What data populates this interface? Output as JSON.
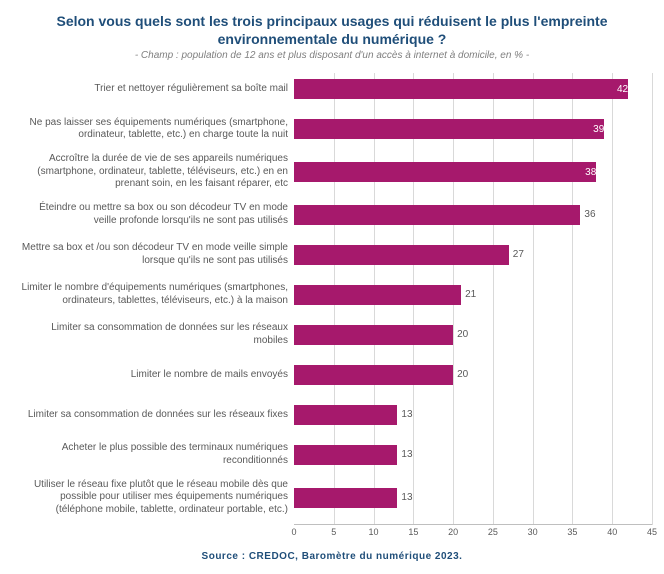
{
  "title": "Selon vous quels sont les trois principaux usages qui réduisent le plus l'empreinte environnementale du numérique ?",
  "subtitle": "- Champ : population de 12 ans et plus disposant d'un accès à internet à domicile, en % -",
  "source": "Source : CREDOC, Baromètre du numérique 2023.",
  "chart": {
    "type": "bar-horizontal",
    "xmax": 45,
    "xtick_step": 5,
    "bar_color": "#a6196c",
    "grid_color": "#d9d9d9",
    "label_color": "#595959",
    "title_color": "#1f4e79",
    "label_fontsize": 10,
    "inside_label_threshold": 38,
    "items": [
      {
        "label": "Trier et nettoyer régulièrement sa boîte mail",
        "value": 42
      },
      {
        "label": "Ne pas laisser ses équipements numériques (smartphone, ordinateur, tablette, etc.) en charge toute la nuit",
        "value": 39
      },
      {
        "label": "Accroître la durée de vie de ses appareils numériques (smartphone, ordinateur, tablette, téléviseurs, etc.) en en prenant soin, en les faisant réparer, etc",
        "value": 38
      },
      {
        "label": "Éteindre ou mettre sa box ou son décodeur TV en mode veille profonde lorsqu'ils ne sont pas utilisés",
        "value": 36
      },
      {
        "label": "Mettre sa box et /ou son décodeur TV en mode veille simple lorsque qu'ils ne sont pas utilisés",
        "value": 27
      },
      {
        "label": "Limiter le nombre d'équipements numériques (smartphones, ordinateurs, tablettes, téléviseurs, etc.) à la maison",
        "value": 21
      },
      {
        "label": "Limiter sa consommation de données sur les réseaux mobiles",
        "value": 20
      },
      {
        "label": "Limiter le nombre de mails envoyés",
        "value": 20
      },
      {
        "label": "Limiter sa consommation de données sur les réseaux fixes",
        "value": 13
      },
      {
        "label": "Acheter le plus possible des terminaux numériques reconditionnés",
        "value": 13
      },
      {
        "label": "Utiliser le réseau fixe plutôt que le réseau mobile dès que possible pour utiliser mes équipements numériques (téléphone mobile, tablette, ordinateur portable, etc.)",
        "value": 13
      }
    ]
  }
}
